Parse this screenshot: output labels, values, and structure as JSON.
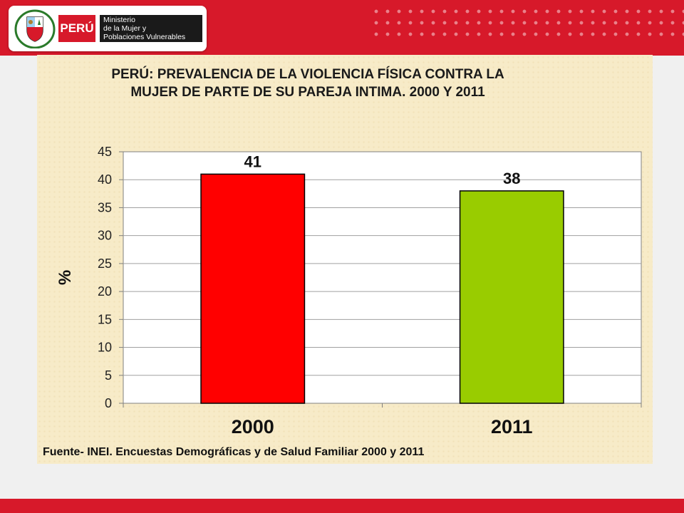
{
  "header": {
    "country_logo_text": "PERÚ",
    "ministry_lines": [
      "Ministerio",
      "de la Mujer y",
      "Poblaciones Vulnerables"
    ]
  },
  "chart_data": {
    "type": "bar",
    "title": "PERÚ: PREVALENCIA DE LA VIOLENCIA FÍSICA CONTRA LA MUJER DE PARTE DE SU PAREJA INTIMA. 2000 Y 2011",
    "categories": [
      "2000",
      "2011"
    ],
    "values": [
      41,
      38
    ],
    "data_labels": [
      "41",
      "38"
    ],
    "bar_colors": [
      "#ff0000",
      "#99cc00"
    ],
    "ylabel": "%",
    "xlabel": "",
    "ylim": [
      0,
      45
    ],
    "yticks": [
      0,
      5,
      10,
      15,
      20,
      25,
      30,
      35,
      40,
      45
    ],
    "grid": true,
    "legend": "none",
    "source": "Fuente- INEI. Encuestas Demográficas y de Salud Familiar 2000 y 2011"
  },
  "colors": {
    "brand_red": "#d7192a",
    "panel_bg": "#f7ebc8"
  }
}
